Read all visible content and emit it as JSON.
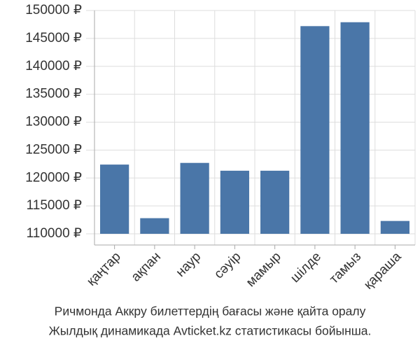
{
  "chart_data": {
    "type": "bar",
    "categories": [
      "қаңтар",
      "ақпан",
      "наур",
      "сәуір",
      "мамыр",
      "шілде",
      "тамыз",
      "қараша"
    ],
    "values": [
      122400,
      112800,
      122700,
      121300,
      121300,
      147200,
      147900,
      112300
    ],
    "color": "#4a76a8",
    "ylim": [
      110000,
      150000
    ],
    "yticks": [
      {
        "value": 110000,
        "label": "110000 ₽"
      },
      {
        "value": 115000,
        "label": "115000 ₽"
      },
      {
        "value": 120000,
        "label": "120000 ₽"
      },
      {
        "value": 125000,
        "label": "125000 ₽"
      },
      {
        "value": 130000,
        "label": "130000 ₽"
      },
      {
        "value": 135000,
        "label": "135000 ₽"
      },
      {
        "value": 140000,
        "label": "140000 ₽"
      },
      {
        "value": 145000,
        "label": "145000 ₽"
      },
      {
        "value": 150000,
        "label": "150000 ₽"
      }
    ],
    "grid": true,
    "caption": [
      "Ричмонда Аккру билеттердің бағасы және қайта оралу",
      "Жылдық динамикада Avticket.kz статистикасы бойынша."
    ]
  }
}
